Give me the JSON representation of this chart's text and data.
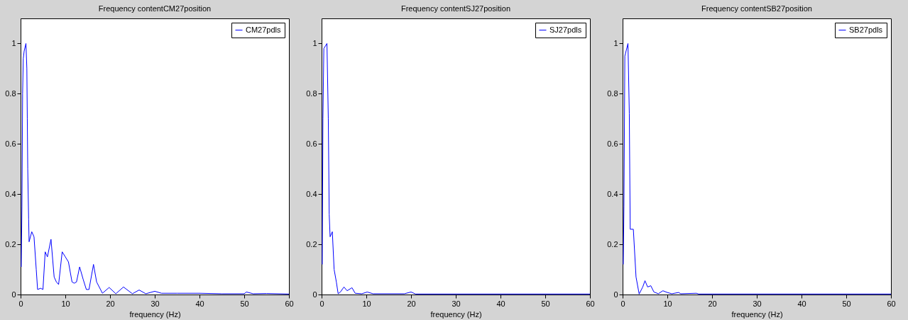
{
  "chart_data": [
    {
      "type": "line",
      "title": "Frequency contentCM27position",
      "xlabel": "frequency (Hz)",
      "xlim": [
        0,
        60
      ],
      "xticks": [
        0,
        10,
        20,
        30,
        40,
        50,
        60
      ],
      "ylim": [
        0,
        1.1
      ],
      "yticks": [
        0,
        0.2,
        0.4,
        0.6,
        0.8,
        1
      ],
      "legend": "top right",
      "grid": false,
      "series": [
        {
          "name": "CM27pdls",
          "color": "#0000ff",
          "x": [
            0.15,
            0.3,
            0.45,
            0.6,
            0.8,
            1.2,
            1.4,
            1.5,
            1.6,
            1.8,
            1.9,
            2.5,
            3,
            3.5,
            3.8,
            4.5,
            5,
            5.5,
            6,
            6.8,
            7.5,
            8,
            8.5,
            9.3,
            10,
            10.7,
            11.5,
            12,
            12.5,
            13.2,
            14,
            14.7,
            15.3,
            16.3,
            17,
            18.3,
            19.8,
            21.3,
            23,
            25,
            26.5,
            28,
            30,
            31.5,
            35,
            40,
            45,
            50,
            50.5,
            52,
            55,
            60
          ],
          "values": [
            0.11,
            0.35,
            0.8,
            0.94,
            0.97,
            1.0,
            0.9,
            0.7,
            0.5,
            0.3,
            0.21,
            0.25,
            0.23,
            0.1,
            0.02,
            0.025,
            0.02,
            0.17,
            0.15,
            0.22,
            0.07,
            0.05,
            0.04,
            0.17,
            0.15,
            0.13,
            0.05,
            0.045,
            0.05,
            0.11,
            0.06,
            0.02,
            0.02,
            0.12,
            0.05,
            0.005,
            0.028,
            0.003,
            0.03,
            0.003,
            0.018,
            0.003,
            0.013,
            0.005,
            0.005,
            0.005,
            0.003,
            0.003,
            0.01,
            0.003,
            0.004,
            0.002
          ]
        }
      ]
    },
    {
      "type": "line",
      "title": "Frequency contentSJ27position",
      "xlabel": "frequency (Hz)",
      "xlim": [
        0,
        60
      ],
      "xticks": [
        0,
        10,
        20,
        30,
        40,
        50,
        60
      ],
      "ylim": [
        0,
        1.1
      ],
      "yticks": [
        0,
        0.2,
        0.4,
        0.6,
        0.8,
        1
      ],
      "legend": "top right",
      "grid": false,
      "series": [
        {
          "name": "SJ27pdls",
          "color": "#0000ff",
          "x": [
            0.15,
            0.3,
            0.5,
            1.2,
            1.5,
            1.7,
            1.9,
            2.4,
            2.8,
            3.3,
            3.7,
            4.2,
            5,
            5.7,
            6.8,
            7.5,
            9,
            10.2,
            11.5,
            18.5,
            20,
            21,
            60
          ],
          "values": [
            0.12,
            0.7,
            0.98,
            1.0,
            0.7,
            0.32,
            0.23,
            0.25,
            0.1,
            0.05,
            0.003,
            0.01,
            0.03,
            0.015,
            0.027,
            0.005,
            0.003,
            0.01,
            0.003,
            0.003,
            0.01,
            0.002,
            0.002
          ]
        }
      ]
    },
    {
      "type": "line",
      "title": "Frequency contentSB27position",
      "xlabel": "frequency (Hz)",
      "xlim": [
        0,
        60
      ],
      "xticks": [
        0,
        10,
        20,
        30,
        40,
        50,
        60
      ],
      "ylim": [
        0,
        1.1
      ],
      "yticks": [
        0,
        0.2,
        0.4,
        0.6,
        0.8,
        1
      ],
      "legend": "top right",
      "grid": false,
      "series": [
        {
          "name": "SB27pdls",
          "color": "#0000ff",
          "x": [
            0.15,
            0.3,
            0.5,
            1.2,
            1.5,
            1.7,
            2.4,
            3,
            3.7,
            4.5,
            5,
            5.6,
            6.3,
            7,
            8,
            9,
            10,
            11,
            12.5,
            13,
            16.5,
            17,
            60
          ],
          "values": [
            0.12,
            0.35,
            0.95,
            1.0,
            0.72,
            0.26,
            0.26,
            0.07,
            0.002,
            0.03,
            0.055,
            0.03,
            0.035,
            0.01,
            0.003,
            0.015,
            0.008,
            0.003,
            0.008,
            0.003,
            0.005,
            0.002,
            0.002
          ]
        }
      ]
    }
  ]
}
